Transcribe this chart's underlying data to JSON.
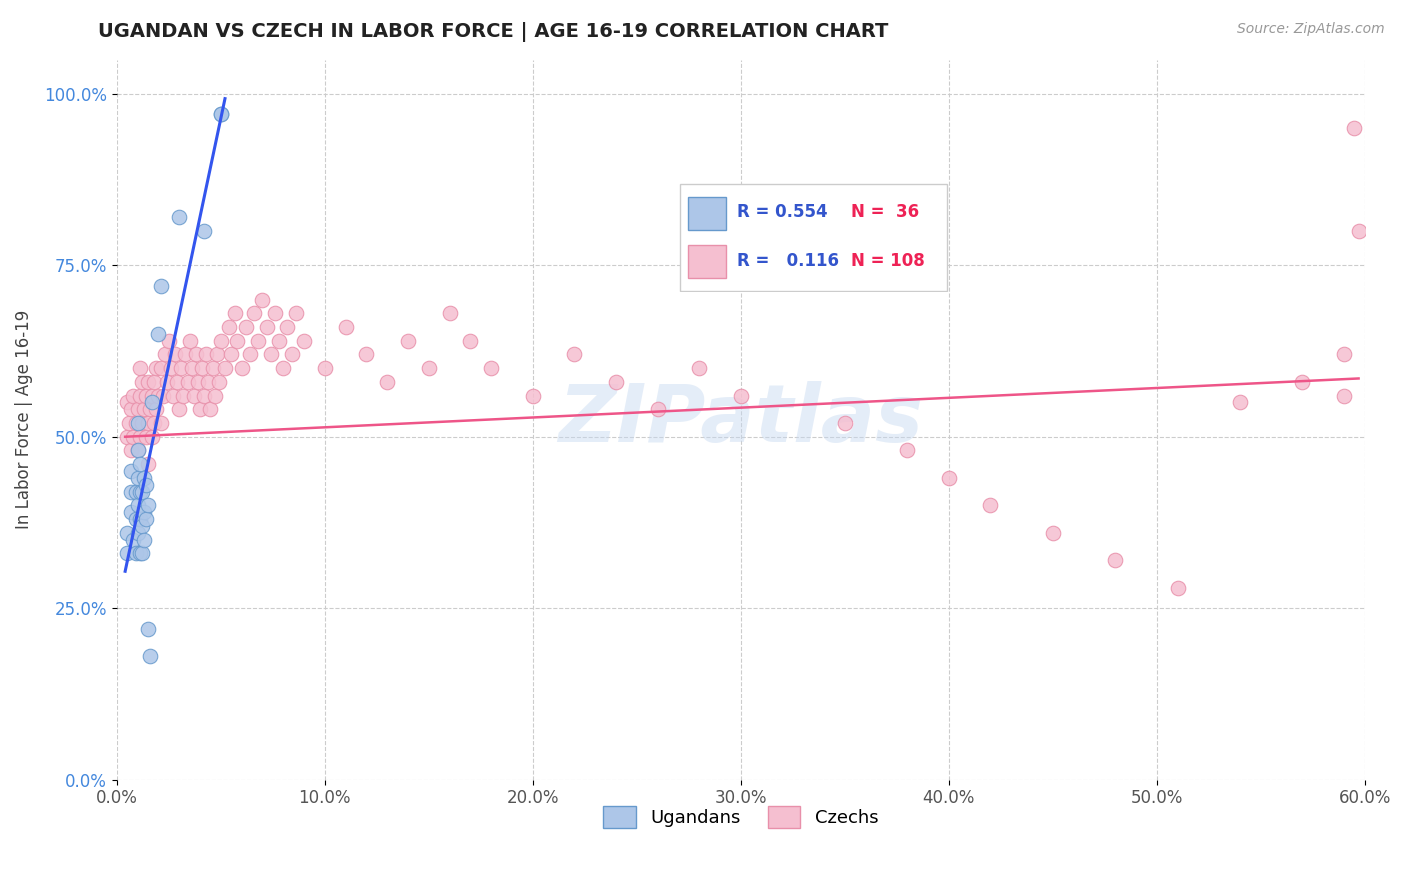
{
  "title": "UGANDAN VS CZECH IN LABOR FORCE | AGE 16-19 CORRELATION CHART",
  "source_text": "Source: ZipAtlas.com",
  "ylabel": "In Labor Force | Age 16-19",
  "xlim": [
    0.0,
    0.6
  ],
  "ylim": [
    0.0,
    1.05
  ],
  "xtick_labels": [
    "0.0%",
    "10.0%",
    "20.0%",
    "30.0%",
    "40.0%",
    "50.0%",
    "60.0%"
  ],
  "xtick_vals": [
    0.0,
    0.1,
    0.2,
    0.3,
    0.4,
    0.5,
    0.6
  ],
  "ytick_labels": [
    "0.0%",
    "25.0%",
    "50.0%",
    "75.0%",
    "100.0%"
  ],
  "ytick_vals": [
    0.0,
    0.25,
    0.5,
    0.75,
    1.0
  ],
  "ugandan_color": "#adc6e8",
  "czech_color": "#f5bfd0",
  "ugandan_edge": "#6699cc",
  "czech_edge": "#e890aa",
  "trendline_ugandan": "#3355ee",
  "trendline_czech": "#ee5588",
  "legend_R_ugandan": "0.554",
  "legend_N_ugandan": "36",
  "legend_R_czech": "0.116",
  "legend_N_czech": "108",
  "ugandan_x": [
    0.005,
    0.005,
    0.007,
    0.007,
    0.007,
    0.008,
    0.009,
    0.009,
    0.009,
    0.01,
    0.01,
    0.01,
    0.01,
    0.01,
    0.011,
    0.011,
    0.011,
    0.011,
    0.012,
    0.012,
    0.012,
    0.013,
    0.013,
    0.013,
    0.014,
    0.014,
    0.015,
    0.015,
    0.016,
    0.017,
    0.02,
    0.021,
    0.03,
    0.042,
    0.05,
    0.05
  ],
  "ugandan_y": [
    0.33,
    0.36,
    0.39,
    0.42,
    0.45,
    0.35,
    0.33,
    0.38,
    0.42,
    0.36,
    0.4,
    0.44,
    0.48,
    0.52,
    0.33,
    0.38,
    0.42,
    0.46,
    0.33,
    0.37,
    0.42,
    0.35,
    0.39,
    0.44,
    0.38,
    0.43,
    0.22,
    0.4,
    0.18,
    0.55,
    0.65,
    0.72,
    0.82,
    0.8,
    0.97,
    0.97
  ],
  "czech_x": [
    0.005,
    0.005,
    0.006,
    0.007,
    0.007,
    0.008,
    0.008,
    0.009,
    0.01,
    0.01,
    0.011,
    0.011,
    0.011,
    0.012,
    0.012,
    0.013,
    0.014,
    0.014,
    0.015,
    0.015,
    0.015,
    0.016,
    0.017,
    0.017,
    0.018,
    0.018,
    0.019,
    0.019,
    0.02,
    0.021,
    0.021,
    0.022,
    0.023,
    0.024,
    0.025,
    0.026,
    0.027,
    0.028,
    0.029,
    0.03,
    0.031,
    0.032,
    0.033,
    0.034,
    0.035,
    0.036,
    0.037,
    0.038,
    0.039,
    0.04,
    0.041,
    0.042,
    0.043,
    0.044,
    0.045,
    0.046,
    0.047,
    0.048,
    0.049,
    0.05,
    0.052,
    0.054,
    0.055,
    0.057,
    0.058,
    0.06,
    0.062,
    0.064,
    0.066,
    0.068,
    0.07,
    0.072,
    0.074,
    0.076,
    0.078,
    0.08,
    0.082,
    0.084,
    0.086,
    0.09,
    0.1,
    0.11,
    0.12,
    0.13,
    0.14,
    0.15,
    0.16,
    0.17,
    0.18,
    0.2,
    0.22,
    0.24,
    0.26,
    0.28,
    0.3,
    0.35,
    0.38,
    0.4,
    0.42,
    0.45,
    0.48,
    0.51,
    0.54,
    0.57,
    0.59,
    0.59,
    0.595,
    0.597
  ],
  "czech_y": [
    0.5,
    0.55,
    0.52,
    0.48,
    0.54,
    0.5,
    0.56,
    0.52,
    0.48,
    0.54,
    0.5,
    0.56,
    0.6,
    0.52,
    0.58,
    0.54,
    0.5,
    0.56,
    0.46,
    0.52,
    0.58,
    0.54,
    0.5,
    0.56,
    0.52,
    0.58,
    0.54,
    0.6,
    0.56,
    0.52,
    0.6,
    0.56,
    0.62,
    0.58,
    0.64,
    0.6,
    0.56,
    0.62,
    0.58,
    0.54,
    0.6,
    0.56,
    0.62,
    0.58,
    0.64,
    0.6,
    0.56,
    0.62,
    0.58,
    0.54,
    0.6,
    0.56,
    0.62,
    0.58,
    0.54,
    0.6,
    0.56,
    0.62,
    0.58,
    0.64,
    0.6,
    0.66,
    0.62,
    0.68,
    0.64,
    0.6,
    0.66,
    0.62,
    0.68,
    0.64,
    0.7,
    0.66,
    0.62,
    0.68,
    0.64,
    0.6,
    0.66,
    0.62,
    0.68,
    0.64,
    0.6,
    0.66,
    0.62,
    0.58,
    0.64,
    0.6,
    0.68,
    0.64,
    0.6,
    0.56,
    0.62,
    0.58,
    0.54,
    0.6,
    0.56,
    0.52,
    0.48,
    0.44,
    0.4,
    0.36,
    0.32,
    0.28,
    0.55,
    0.58,
    0.56,
    0.62,
    0.95,
    0.8
  ],
  "trendline_ugandan_x0": 0.004,
  "trendline_ugandan_x1": 0.052,
  "trendline_czech_x0": 0.004,
  "trendline_czech_x1": 0.597,
  "trendline_czech_y0": 0.5,
  "trendline_czech_y1": 0.585
}
